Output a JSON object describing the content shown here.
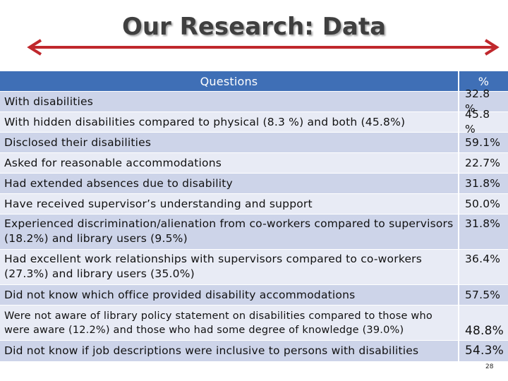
{
  "header": {
    "title": "Our Research: Data"
  },
  "table": {
    "columns": [
      "Questions",
      "%"
    ],
    "rows": [
      [
        "With disabilities",
        "32.8 %"
      ],
      [
        "With hidden disabilities compared to physical (8.3 %) and both (45.8%)",
        "45.8 %"
      ],
      [
        "Disclosed their disabilities",
        "59.1%"
      ],
      [
        "Asked for reasonable accommodations",
        "22.7%"
      ],
      [
        "Had extended absences due to disability",
        "31.8%"
      ],
      [
        "Have received supervisor’s understanding and support",
        "50.0%"
      ],
      [
        "Experienced discrimination/alienation from co-workers compared to supervisors (18.2%) and library users (9.5%)",
        "31.8%"
      ],
      [
        "Had excellent work relationships with supervisors compared to co-workers (27.3%) and library users (35.0%)",
        "36.4%"
      ],
      [
        "Did not know which office provided disability accommodations",
        "57.5%"
      ],
      [
        "Were not aware of library policy statement on disabilities compared to those who were aware (12.2%) and those who had some degree of knowledge (39.0%)",
        "48.8%"
      ],
      [
        "Did not know if job descriptions were inclusive to persons with disabilities",
        "54.3%"
      ]
    ]
  },
  "page_number": "28"
}
